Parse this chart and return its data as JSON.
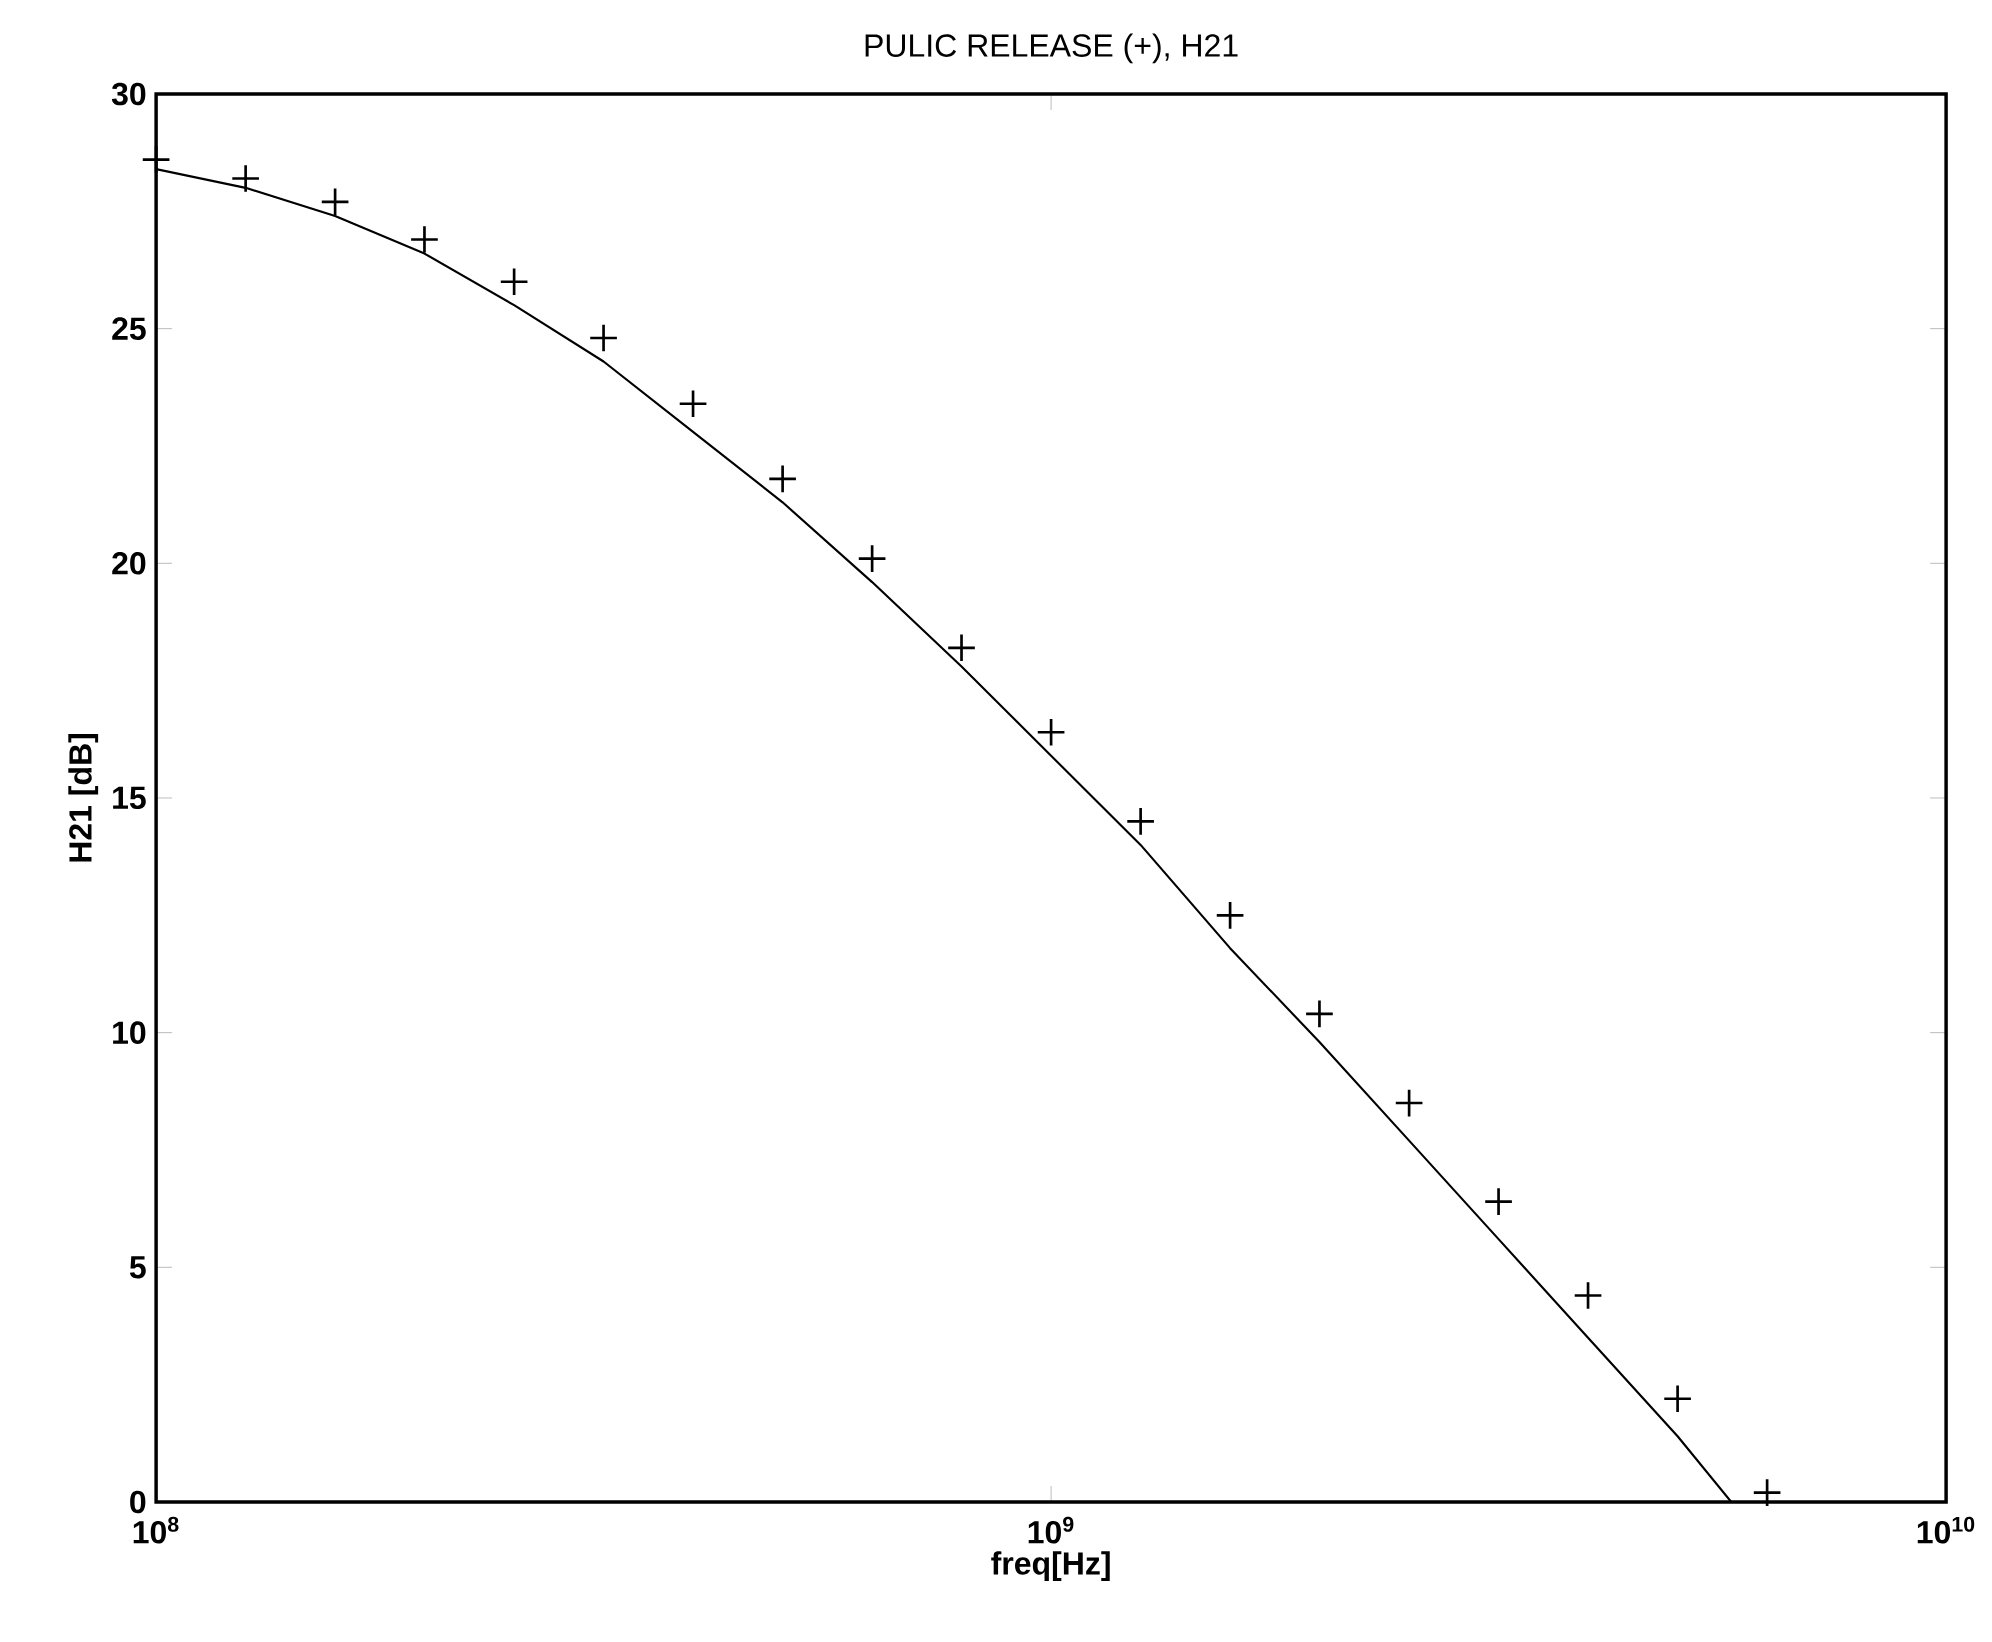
{
  "chart_data": {
    "type": "line",
    "title": "PULIC RELEASE (+), H21",
    "xlabel": "freq[Hz]",
    "ylabel": "H21 [dB]",
    "log": "x",
    "xlim": [
      100000000,
      10000000000
    ],
    "ylim": [
      0,
      30
    ],
    "xticks": [
      {
        "value": 100000000,
        "label": "10$^{8}$"
      },
      {
        "value": 1000000000,
        "label": "10$^{9}$"
      },
      {
        "value": 10000000000,
        "label": "10$^{10}$"
      }
    ],
    "yticks": [
      0,
      5,
      10,
      15,
      20,
      25,
      30
    ],
    "series": [
      {
        "color": "#000000",
        "marker": "none",
        "line_style": "solid",
        "x": [
          100000000,
          125900000,
          158500000,
          199500000,
          251200000,
          316200000,
          398100000,
          501200000,
          631000000,
          794300000,
          1000000000,
          1259000000,
          1585000000,
          1995000000,
          2512000000,
          3162000000,
          3981000000,
          5012000000,
          5754000000
        ],
        "values": [
          28.4,
          28.0,
          27.4,
          26.6,
          25.5,
          24.3,
          22.8,
          21.3,
          19.6,
          17.8,
          15.9,
          14.0,
          11.8,
          9.8,
          7.7,
          5.6,
          3.5,
          1.4,
          0
        ]
      },
      {
        "type": "scatter",
        "color": "#000000",
        "marker": "cross",
        "x": [
          100000000,
          125900000,
          158500000,
          199500000,
          251200000,
          316200000,
          398100000,
          501200000,
          631000000,
          794300000,
          1000000000,
          1259000000,
          1585000000,
          1995000000,
          2512000000,
          3162000000,
          3981000000,
          5012000000,
          6310000000
        ],
        "values": [
          28.6,
          28.2,
          27.7,
          26.9,
          26.0,
          24.8,
          23.4,
          21.8,
          20.1,
          18.2,
          16.4,
          14.5,
          12.5,
          10.4,
          8.5,
          6.4,
          4.4,
          2.2,
          0.2
        ]
      }
    ]
  }
}
